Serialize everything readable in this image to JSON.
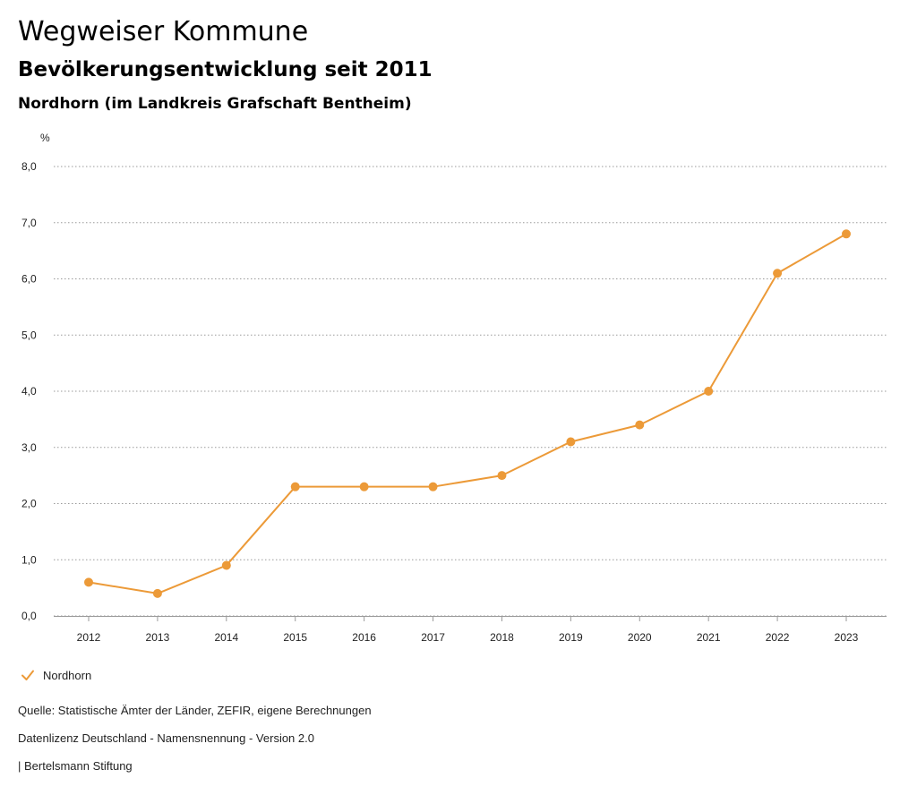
{
  "header": {
    "title": "Wegweiser Kommune",
    "subtitle": "Bevölkerungsentwicklung seit 2011",
    "region": "Nordhorn (im Landkreis Grafschaft Bentheim)"
  },
  "chart_data": {
    "type": "line",
    "title": "Bevölkerungsentwicklung seit 2011",
    "xlabel": "",
    "ylabel": "%",
    "x": [
      "2012",
      "2013",
      "2014",
      "2015",
      "2016",
      "2017",
      "2018",
      "2019",
      "2020",
      "2021",
      "2022",
      "2023"
    ],
    "series": [
      {
        "name": "Nordhorn",
        "color": "#ec9a38",
        "values": [
          0.6,
          0.4,
          0.9,
          2.3,
          2.3,
          2.3,
          2.5,
          3.1,
          3.4,
          4.0,
          6.1,
          6.8
        ]
      }
    ],
    "ylim": [
      0,
      8
    ],
    "yticks": [
      0,
      1,
      2,
      3,
      4,
      5,
      6,
      7,
      8
    ],
    "ytick_labels": [
      "0,0",
      "1,0",
      "2,0",
      "3,0",
      "4,0",
      "5,0",
      "6,0",
      "7,0",
      "8,0"
    ],
    "grid": true,
    "legend_position": "bottom-left"
  },
  "legend": {
    "label": "Nordhorn",
    "icon": "check-icon"
  },
  "footer": {
    "source": "Quelle: Statistische Ämter der Länder, ZEFIR, eigene Berechnungen",
    "license": "Datenlizenz Deutschland - Namensnennung - Version 2.0",
    "credit": "| Bertelsmann Stiftung"
  }
}
